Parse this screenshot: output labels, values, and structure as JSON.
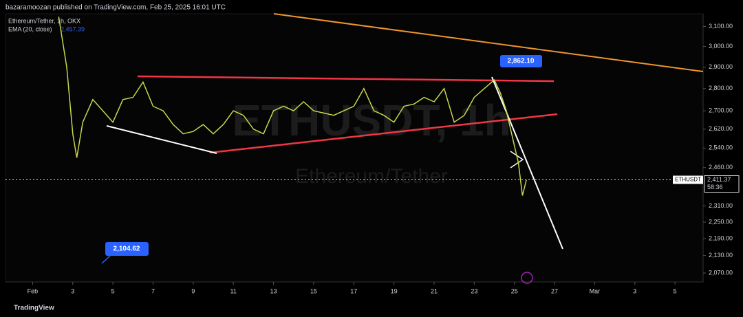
{
  "header": "bazaramoozan published on TradingView.com, Feb 25, 2025 16:01 UTC",
  "chart_data": {
    "type": "line",
    "title": "Ethereum/Tether, 1h, OKX",
    "indicator": "EMA (20, close)",
    "indicator_value": "2,457.39",
    "watermark_symbol": "ETHUSDT, 1h",
    "watermark_name": "Ethereum/Tether",
    "log": true,
    "x": [
      2.3,
      2.7,
      3.0,
      3.2,
      3.5,
      4.0,
      4.5,
      5.0,
      5.5,
      6.0,
      6.5,
      7.0,
      7.5,
      8.0,
      8.5,
      9.0,
      9.5,
      10.0,
      10.5,
      11.0,
      11.5,
      12.0,
      12.5,
      13.0,
      13.5,
      14.0,
      14.5,
      15.0,
      15.5,
      16.0,
      16.5,
      17.0,
      17.5,
      18.0,
      18.5,
      19.0,
      19.5,
      20.0,
      20.5,
      21.0,
      21.5,
      22.0,
      22.5,
      23.0,
      23.5,
      24.0,
      24.3,
      24.6,
      25.0,
      25.2,
      25.4,
      25.6
    ],
    "series": [
      {
        "name": "ETHUSDT",
        "color": "#c9d64a",
        "values": [
          3150,
          2900,
          2600,
          2500,
          2650,
          2750,
          2700,
          2650,
          2750,
          2760,
          2830,
          2720,
          2700,
          2640,
          2600,
          2610,
          2640,
          2600,
          2640,
          2700,
          2680,
          2620,
          2600,
          2700,
          2720,
          2700,
          2740,
          2700,
          2690,
          2680,
          2700,
          2720,
          2800,
          2700,
          2680,
          2650,
          2720,
          2730,
          2760,
          2740,
          2800,
          2650,
          2680,
          2760,
          2800,
          2840,
          2780,
          2700,
          2550,
          2480,
          2350,
          2411.37
        ]
      }
    ],
    "xlim": [
      -0.35,
      34.4
    ],
    "ylim": [
      2040,
      3165
    ],
    "xticks": [
      {
        "value": 1,
        "label": "Feb"
      },
      3,
      5,
      7,
      9,
      11,
      13,
      15,
      17,
      19,
      21,
      23,
      25,
      27,
      {
        "value": 29,
        "label": "Mar"
      },
      {
        "value": 31,
        "label": "3"
      },
      {
        "value": 33,
        "label": "5"
      }
    ],
    "yticks": [
      {
        "value": 3100,
        "label": "3,100.00"
      },
      {
        "value": 3000,
        "label": "3,000.00"
      },
      {
        "value": 2900,
        "label": "2,900.00"
      },
      {
        "value": 2800,
        "label": "2,800.00"
      },
      {
        "value": 2700,
        "label": "2,700.00"
      },
      {
        "value": 2620,
        "label": "2,620.00"
      },
      {
        "value": 2540,
        "label": "2,540.00"
      },
      {
        "value": 2460,
        "label": "2,460.00"
      },
      {
        "value": 2310,
        "label": "2,310.00"
      },
      {
        "value": 2250,
        "label": "2,250.00"
      },
      {
        "value": 2190,
        "label": "2,190.00"
      },
      {
        "value": 2130,
        "label": "2,130.00"
      },
      {
        "value": 2070,
        "label": "2,070.00"
      }
    ],
    "annotations": [
      {
        "label": "2,862.10",
        "value": 2862.1
      },
      {
        "label": "2,104.62",
        "value": 2104.62
      }
    ],
    "last_price": {
      "symbol": "ETHUSDT",
      "value": 2411.37,
      "label": "2,411.37",
      "countdown": "58:36"
    }
  },
  "footer": "TradingView"
}
